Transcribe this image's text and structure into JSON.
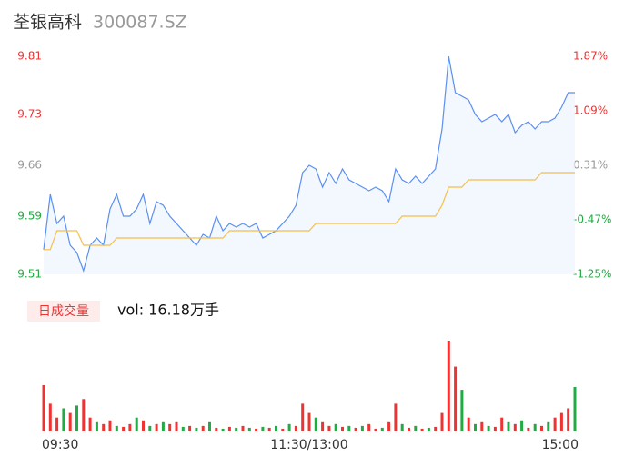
{
  "chart_data": [
    {
      "type": "line",
      "title": "荃银高科",
      "subtitle": "300087.SZ",
      "x": [
        0,
        3,
        6,
        9,
        12,
        15,
        18,
        21,
        24,
        27,
        30,
        33,
        36,
        39,
        42,
        45,
        48,
        51,
        54,
        57,
        60,
        63,
        66,
        69,
        72,
        75,
        78,
        81,
        84,
        87,
        90,
        93,
        96,
        99,
        102,
        105,
        108,
        111,
        114,
        117,
        120,
        123,
        126,
        129,
        132,
        135,
        138,
        141,
        144,
        147,
        150,
        153,
        156,
        159,
        162,
        165,
        168,
        171,
        174,
        177,
        180,
        183,
        186,
        189,
        192,
        195,
        198,
        201,
        204,
        207,
        210,
        213,
        216,
        219,
        222,
        225,
        228,
        231,
        234,
        237,
        240
      ],
      "xlim": [
        0,
        240
      ],
      "xticks": [
        {
          "value": 0,
          "label": "09:30"
        },
        {
          "value": 120,
          "label": "11:30/13:00"
        },
        {
          "value": 240,
          "label": "15:00"
        }
      ],
      "series": [
        {
          "color": "#5b8ff0",
          "values": [
            9.544,
            9.62,
            9.58,
            9.59,
            9.55,
            9.54,
            9.515,
            9.55,
            9.56,
            9.55,
            9.6,
            9.62,
            9.59,
            9.59,
            9.6,
            9.62,
            9.58,
            9.61,
            9.605,
            9.59,
            9.58,
            9.57,
            9.56,
            9.55,
            9.565,
            9.56,
            9.59,
            9.57,
            9.58,
            9.575,
            9.58,
            9.575,
            9.58,
            9.56,
            9.565,
            9.57,
            9.58,
            9.59,
            9.605,
            9.65,
            9.66,
            9.655,
            9.63,
            9.65,
            9.635,
            9.655,
            9.64,
            9.635,
            9.63,
            9.625,
            9.63,
            9.625,
            9.61,
            9.655,
            9.64,
            9.635,
            9.645,
            9.635,
            9.645,
            9.655,
            9.71,
            9.81,
            9.76,
            9.755,
            9.75,
            9.73,
            9.72,
            9.725,
            9.73,
            9.72,
            9.73,
            9.705,
            9.715,
            9.72,
            9.71,
            9.72,
            9.72,
            9.725,
            9.74,
            9.76,
            9.76
          ]
        },
        {
          "color": "#f5c04a",
          "values": [
            9.544,
            9.544,
            9.57,
            9.57,
            9.57,
            9.57,
            9.55,
            9.55,
            9.55,
            9.55,
            9.55,
            9.56,
            9.56,
            9.56,
            9.56,
            9.56,
            9.56,
            9.56,
            9.56,
            9.56,
            9.56,
            9.56,
            9.56,
            9.56,
            9.56,
            9.56,
            9.56,
            9.56,
            9.57,
            9.57,
            9.57,
            9.57,
            9.57,
            9.57,
            9.57,
            9.57,
            9.57,
            9.57,
            9.57,
            9.57,
            9.57,
            9.58,
            9.58,
            9.58,
            9.58,
            9.58,
            9.58,
            9.58,
            9.58,
            9.58,
            9.58,
            9.58,
            9.58,
            9.58,
            9.59,
            9.59,
            9.59,
            9.59,
            9.59,
            9.59,
            9.605,
            9.63,
            9.63,
            9.63,
            9.64,
            9.64,
            9.64,
            9.64,
            9.64,
            9.64,
            9.64,
            9.64,
            9.64,
            9.64,
            9.64,
            9.65,
            9.65,
            9.65,
            9.65,
            9.65,
            9.65
          ]
        }
      ],
      "ylim": [
        9.51,
        9.81
      ],
      "yticks": [
        9.81,
        9.73,
        9.66,
        9.59,
        9.51
      ],
      "y2lim": [
        -1.25,
        1.87
      ],
      "y2ticks": [
        {
          "value": 1.87,
          "label": "1.87%"
        },
        {
          "value": 1.09,
          "label": "1.09%"
        },
        {
          "value": 0.31,
          "label": "0.31%"
        },
        {
          "value": -0.47,
          "label": "-0.47%"
        },
        {
          "value": -1.25,
          "label": "-1.25%"
        }
      ],
      "tick_colors": [
        "#e33",
        "#e33",
        "#999",
        "#2a4",
        "#2a4"
      ]
    },
    {
      "type": "bar",
      "title": "日成交量",
      "subtitle": "vol: 16.18万手",
      "values": [
        1500,
        900,
        450,
        750,
        600,
        840,
        1050,
        450,
        300,
        240,
        360,
        180,
        150,
        240,
        450,
        360,
        180,
        240,
        300,
        240,
        300,
        150,
        180,
        120,
        180,
        300,
        120,
        90,
        150,
        120,
        180,
        120,
        90,
        150,
        120,
        180,
        90,
        240,
        180,
        900,
        600,
        450,
        300,
        180,
        240,
        150,
        180,
        120,
        180,
        240,
        90,
        120,
        300,
        900,
        240,
        120,
        180,
        90,
        120,
        150,
        600,
        2940,
        2100,
        1350,
        450,
        240,
        300,
        180,
        150,
        450,
        300,
        240,
        360,
        120,
        240,
        180,
        300,
        450,
        600,
        750,
        1440
      ],
      "colors": [
        "#e33",
        "#e33",
        "#e33",
        "#2a4",
        "#e33",
        "#2a4",
        "#e33",
        "#e33",
        "#2a4",
        "#e33",
        "#e33",
        "#2a4",
        "#e33",
        "#e33",
        "#2a4",
        "#e33",
        "#2a4",
        "#e33",
        "#2a4",
        "#e33",
        "#e33",
        "#2a4",
        "#e33",
        "#2a4",
        "#e33",
        "#2a4",
        "#e33",
        "#2a4",
        "#e33",
        "#2a4",
        "#e33",
        "#2a4",
        "#e33",
        "#2a4",
        "#e33",
        "#2a4",
        "#e33",
        "#2a4",
        "#e33",
        "#e33",
        "#e33",
        "#2a4",
        "#e33",
        "#e33",
        "#2a4",
        "#e33",
        "#2a4",
        "#e33",
        "#2a4",
        "#e33",
        "#e33",
        "#2a4",
        "#e33",
        "#e33",
        "#2a4",
        "#e33",
        "#2a4",
        "#e33",
        "#2a4",
        "#e33",
        "#e33",
        "#e33",
        "#e33",
        "#2a4",
        "#e33",
        "#2a4",
        "#e33",
        "#2a4",
        "#e33",
        "#e33",
        "#2a4",
        "#e33",
        "#2a4",
        "#e33",
        "#2a4",
        "#e33",
        "#2a4",
        "#e33",
        "#e33",
        "#e33",
        "#2a4"
      ]
    }
  ]
}
